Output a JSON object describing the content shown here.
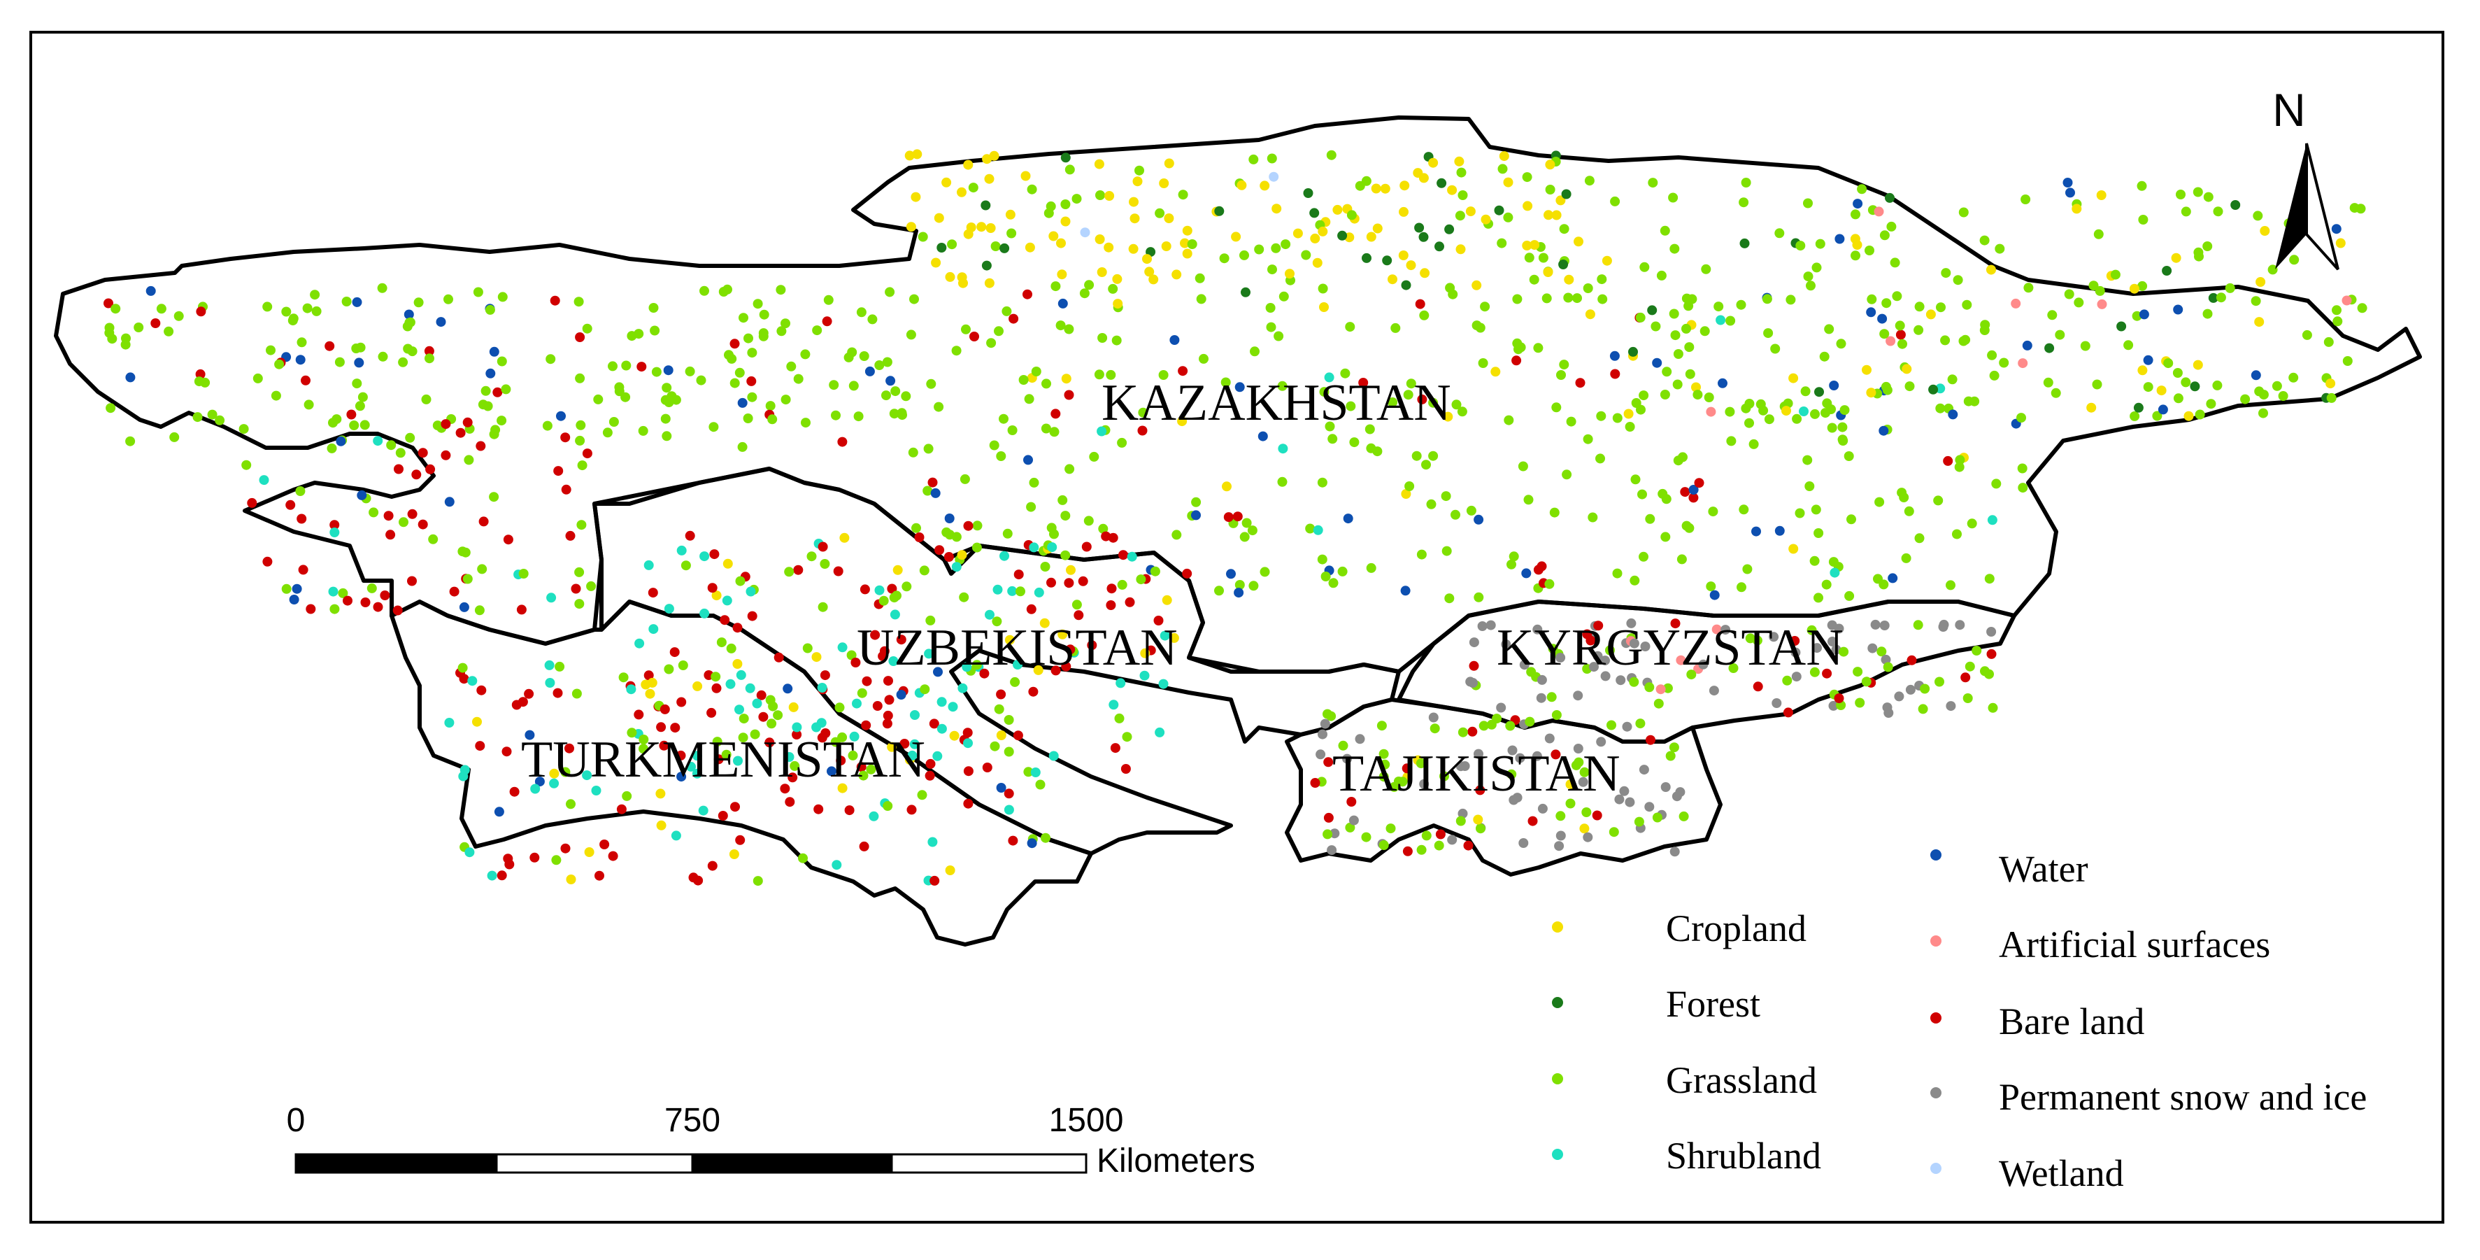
{
  "countries": {
    "kazakhstan": "KAZAKHSTAN",
    "uzbekistan": "UZBEKISTAN",
    "turkmenistan": "TURKMENISTAN",
    "kyrgyzstan": "KYRGYZSTAN",
    "tajikistan": "TAJIKISTAN"
  },
  "north_label": "N",
  "scale_bar": {
    "ticks": [
      "0",
      "750",
      "1500"
    ],
    "unit": "Kilometers"
  },
  "legend": {
    "items": [
      {
        "label": "Cropland",
        "color": "#f5e000"
      },
      {
        "label": "Forest",
        "color": "#1a7a1a"
      },
      {
        "label": "Grassland",
        "color": "#7fe000"
      },
      {
        "label": "Shrubland",
        "color": "#1ee0c0"
      },
      {
        "label": "Water",
        "color": "#0d4fb0"
      },
      {
        "label": "Artificial surfaces",
        "color": "#ff8a8a"
      },
      {
        "label": "Bare land",
        "color": "#d00000"
      },
      {
        "label": "Permanent snow and ice",
        "color": "#8a8a8a"
      },
      {
        "label": "Wetland",
        "color": "#b4d4ff"
      }
    ]
  }
}
